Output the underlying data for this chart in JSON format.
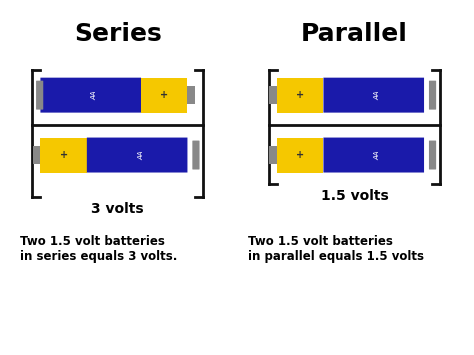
{
  "title_series": "Series",
  "title_parallel": "Parallel",
  "voltage_series": "3 volts",
  "voltage_parallel": "1.5 volts",
  "caption_series": "Two 1.5 volt batteries\nin series equals 3 volts.",
  "caption_parallel": "Two 1.5 volt batteries\nin parallel equals 1.5 volts",
  "bg_color": "#ffffff",
  "battery_blue": "#1a1aaa",
  "battery_yellow": "#f5c800",
  "battery_blue2": "#2222cc",
  "wire_color": "#111111",
  "terminal_color": "#888888",
  "text_color": "#000000"
}
